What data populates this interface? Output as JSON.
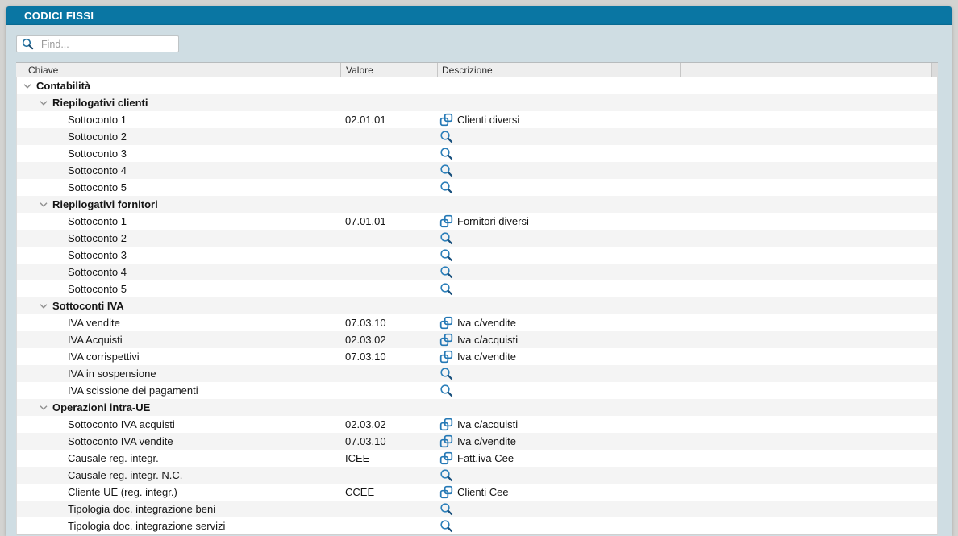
{
  "window": {
    "title": "CODICI FISSI"
  },
  "search": {
    "placeholder": "Find...",
    "value": ""
  },
  "table": {
    "columns": [
      {
        "label": "Chiave"
      },
      {
        "label": "Valore"
      },
      {
        "label": "Descrizione"
      },
      {
        "label": ""
      }
    ],
    "rows": [
      {
        "label": "Contabilità",
        "level": 0,
        "group": true,
        "expanded": true,
        "value": "",
        "icon": "",
        "description": ""
      },
      {
        "label": "Riepilogativi clienti",
        "level": 1,
        "group": true,
        "expanded": true,
        "value": "",
        "icon": "",
        "description": ""
      },
      {
        "label": "Sottoconto 1",
        "level": 2,
        "group": false,
        "value": "02.01.01",
        "icon": "link",
        "description": "Clienti diversi"
      },
      {
        "label": "Sottoconto 2",
        "level": 2,
        "group": false,
        "value": "",
        "icon": "search",
        "description": ""
      },
      {
        "label": "Sottoconto 3",
        "level": 2,
        "group": false,
        "value": "",
        "icon": "search",
        "description": ""
      },
      {
        "label": "Sottoconto 4",
        "level": 2,
        "group": false,
        "value": "",
        "icon": "search",
        "description": ""
      },
      {
        "label": "Sottoconto 5",
        "level": 2,
        "group": false,
        "value": "",
        "icon": "search",
        "description": ""
      },
      {
        "label": "Riepilogativi fornitori",
        "level": 1,
        "group": true,
        "expanded": true,
        "value": "",
        "icon": "",
        "description": ""
      },
      {
        "label": "Sottoconto 1",
        "level": 2,
        "group": false,
        "value": "07.01.01",
        "icon": "link",
        "description": "Fornitori diversi"
      },
      {
        "label": "Sottoconto 2",
        "level": 2,
        "group": false,
        "value": "",
        "icon": "search",
        "description": ""
      },
      {
        "label": "Sottoconto 3",
        "level": 2,
        "group": false,
        "value": "",
        "icon": "search",
        "description": ""
      },
      {
        "label": "Sottoconto 4",
        "level": 2,
        "group": false,
        "value": "",
        "icon": "search",
        "description": ""
      },
      {
        "label": "Sottoconto 5",
        "level": 2,
        "group": false,
        "value": "",
        "icon": "search",
        "description": ""
      },
      {
        "label": "Sottoconti IVA",
        "level": 1,
        "group": true,
        "expanded": true,
        "value": "",
        "icon": "",
        "description": ""
      },
      {
        "label": "IVA vendite",
        "level": 2,
        "group": false,
        "value": "07.03.10",
        "icon": "link",
        "description": "Iva c/vendite"
      },
      {
        "label": "IVA Acquisti",
        "level": 2,
        "group": false,
        "value": "02.03.02",
        "icon": "link",
        "description": "Iva c/acquisti"
      },
      {
        "label": "IVA corrispettivi",
        "level": 2,
        "group": false,
        "value": "07.03.10",
        "icon": "link",
        "description": "Iva c/vendite"
      },
      {
        "label": "IVA in sospensione",
        "level": 2,
        "group": false,
        "value": "",
        "icon": "search",
        "description": ""
      },
      {
        "label": "IVA scissione dei pagamenti",
        "level": 2,
        "group": false,
        "value": "",
        "icon": "search",
        "description": ""
      },
      {
        "label": "Operazioni intra-UE",
        "level": 1,
        "group": true,
        "expanded": true,
        "value": "",
        "icon": "",
        "description": ""
      },
      {
        "label": "Sottoconto IVA acquisti",
        "level": 2,
        "group": false,
        "value": "02.03.02",
        "icon": "link",
        "description": "Iva c/acquisti"
      },
      {
        "label": "Sottoconto IVA vendite",
        "level": 2,
        "group": false,
        "value": "07.03.10",
        "icon": "link",
        "description": "Iva c/vendite"
      },
      {
        "label": "Causale reg. integr.",
        "level": 2,
        "group": false,
        "value": "ICEE",
        "icon": "link",
        "description": "Fatt.iva Cee"
      },
      {
        "label": "Causale reg. integr. N.C.",
        "level": 2,
        "group": false,
        "value": "",
        "icon": "search",
        "description": ""
      },
      {
        "label": "Cliente UE (reg. integr.)",
        "level": 2,
        "group": false,
        "value": "CCEE",
        "icon": "link",
        "description": "Clienti Cee"
      },
      {
        "label": "Tipologia doc. integrazione beni",
        "level": 2,
        "group": false,
        "value": "",
        "icon": "search",
        "description": ""
      },
      {
        "label": "Tipologia doc. integrazione servizi",
        "level": 2,
        "group": false,
        "value": "",
        "icon": "search",
        "description": ""
      }
    ]
  },
  "colors": {
    "titlebar": "#0a76a3",
    "title_text": "#ffffff",
    "content_bg": "#cfdde3",
    "accent_blue": "#2478b5",
    "magnifier_handle": "#174f7c",
    "row_alt_bg": "#f4f4f4"
  }
}
